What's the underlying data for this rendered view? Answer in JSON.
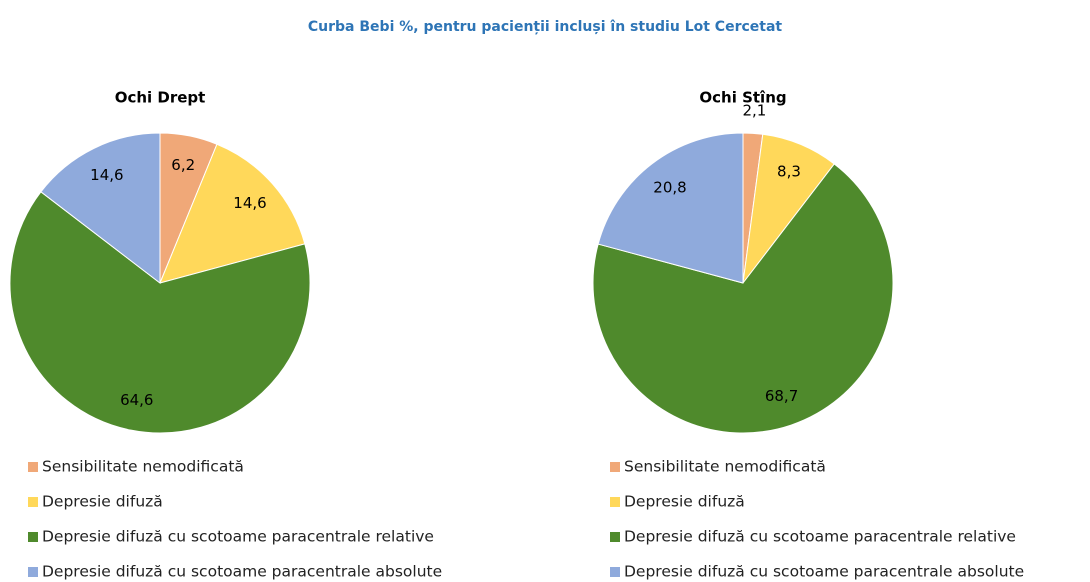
{
  "title": "Curba Bebi %, pentru pacienții incluși în studiu Lot Cercetat",
  "chart_data": [
    {
      "type": "pie",
      "title": "Ochi Drept",
      "categories": [
        "Sensibilitate nemodificată",
        "Depresie difuză",
        "Depresie difuză cu scotoame paracentrale relative",
        "Depresie difuză cu scotoame paracentrale absolute"
      ],
      "values": [
        6.2,
        14.6,
        64.6,
        14.6
      ],
      "value_labels": [
        "6,2",
        "14,6",
        "64,6",
        "14,6"
      ],
      "colors": [
        "#f0a878",
        "#ffd85a",
        "#4f8a2c",
        "#8faadc"
      ]
    },
    {
      "type": "pie",
      "title": "Ochi Stîng",
      "categories": [
        "Sensibilitate nemodificată",
        "Depresie difuză",
        "Depresie difuză cu scotoame paracentrale relative",
        "Depresie difuză cu scotoame paracentrale absolute"
      ],
      "values": [
        2.1,
        8.3,
        68.7,
        20.8
      ],
      "value_labels": [
        "2,1",
        "8,3",
        "68,7",
        "20,8"
      ],
      "colors": [
        "#f0a878",
        "#ffd85a",
        "#4f8a2c",
        "#8faadc"
      ]
    }
  ]
}
